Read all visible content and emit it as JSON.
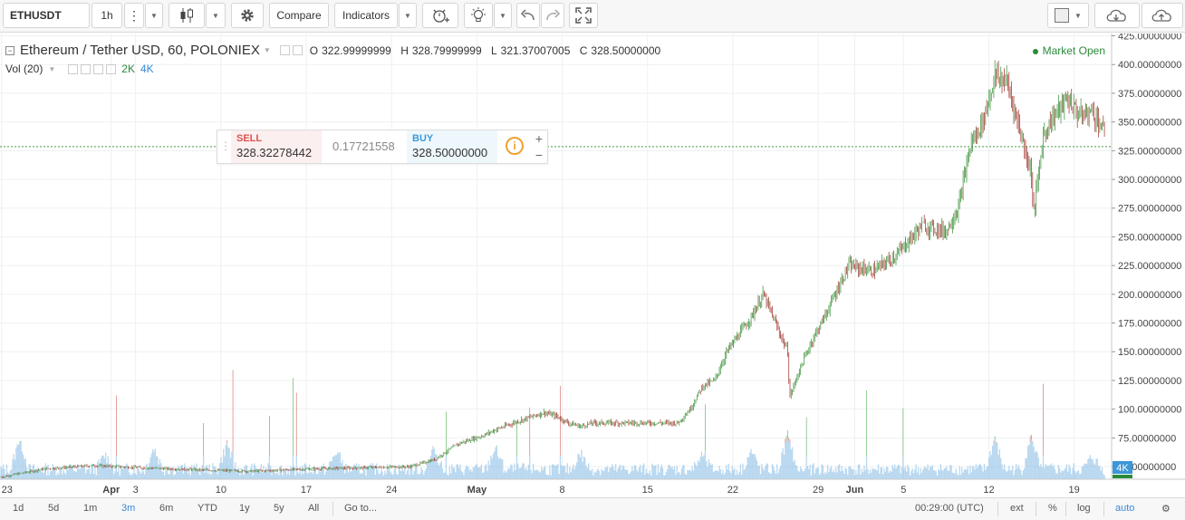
{
  "toolbar": {
    "symbol": "ETHUSDT",
    "interval": "1h",
    "compare_label": "Compare",
    "indicators_label": "Indicators"
  },
  "legend": {
    "title": "Ethereum / Tether USD, 60, POLONIEX",
    "open_label": "O",
    "open": "322.99999999",
    "high_label": "H",
    "high": "328.79999999",
    "low_label": "L",
    "low": "321.37007005",
    "close_label": "C",
    "close": "328.50000000",
    "market_status": "Market Open"
  },
  "volume_legend": {
    "label": "Vol (20)",
    "value_a": "2K",
    "value_b": "4K"
  },
  "trade_widget": {
    "sell_label": "SELL",
    "sell_price": "328.32278442",
    "spread": "0.17721558",
    "buy_label": "BUY",
    "buy_price": "328.50000000",
    "plus": "+",
    "minus": "−"
  },
  "bottom_bar": {
    "ranges": [
      "1d",
      "5d",
      "1m",
      "3m",
      "6m",
      "YTD",
      "1y",
      "5y",
      "All"
    ],
    "active_range": "3m",
    "goto_label": "Go to...",
    "clock": "00:29:00 (UTC)",
    "ext_label": "ext",
    "percent_label": "%",
    "log_label": "log",
    "auto_label": "auto"
  },
  "colors": {
    "up": "#4a9a48",
    "down": "#a8453c",
    "volume": "#7fb8e3",
    "sell": "#d9534f",
    "buy": "#3a9ad9",
    "accent": "#3a8ad6",
    "last_price_badge": "#3c96d8"
  },
  "chart_data": {
    "type": "candlestick",
    "title": "Ethereum / Tether USD, 60, POLONIEX",
    "y_axis": {
      "ticks": [
        "425.00000000",
        "400.00000000",
        "375.00000000",
        "350.00000000",
        "325.00000000",
        "300.00000000",
        "275.00000000",
        "250.00000000",
        "225.00000000",
        "200.00000000",
        "175.00000000",
        "150.00000000",
        "125.00000000",
        "100.00000000",
        "75.00000000",
        "50.00000000"
      ],
      "ylim": [
        39,
        427
      ],
      "side": "right"
    },
    "x_axis": {
      "ticks": [
        "23",
        "Apr",
        "3",
        "10",
        "17",
        "24",
        "May",
        "8",
        "15",
        "22",
        "29",
        "Jun",
        "5",
        "12",
        "19"
      ],
      "bold_ticks": [
        "Apr",
        "May",
        "Jun"
      ],
      "period": "2017-03-23 to 2017-06-21, hourly"
    },
    "last_price": 328.5,
    "volume_badge": "4K",
    "price_path": [
      {
        "x": "2017-03-23",
        "y": 42
      },
      {
        "x": "2017-03-26",
        "y": 48
      },
      {
        "x": "2017-03-30",
        "y": 51
      },
      {
        "x": "2017-04-03",
        "y": 49
      },
      {
        "x": "2017-04-08",
        "y": 47
      },
      {
        "x": "2017-04-12",
        "y": 46
      },
      {
        "x": "2017-04-17",
        "y": 48
      },
      {
        "x": "2017-04-21",
        "y": 49
      },
      {
        "x": "2017-04-25",
        "y": 50
      },
      {
        "x": "2017-04-27",
        "y": 56
      },
      {
        "x": "2017-04-29",
        "y": 70
      },
      {
        "x": "2017-05-01",
        "y": 77
      },
      {
        "x": "2017-05-02",
        "y": 82
      },
      {
        "x": "2017-05-04",
        "y": 90
      },
      {
        "x": "2017-05-06",
        "y": 97
      },
      {
        "x": "2017-05-07",
        "y": 94
      },
      {
        "x": "2017-05-08",
        "y": 88
      },
      {
        "x": "2017-05-09",
        "y": 85
      },
      {
        "x": "2017-05-10",
        "y": 88
      },
      {
        "x": "2017-05-14",
        "y": 88
      },
      {
        "x": "2017-05-17",
        "y": 88
      },
      {
        "x": "2017-05-18",
        "y": 100
      },
      {
        "x": "2017-05-19",
        "y": 120
      },
      {
        "x": "2017-05-20",
        "y": 125
      },
      {
        "x": "2017-05-21",
        "y": 150
      },
      {
        "x": "2017-05-22",
        "y": 165
      },
      {
        "x": "2017-05-23",
        "y": 180
      },
      {
        "x": "2017-05-24",
        "y": 200
      },
      {
        "x": "2017-05-25",
        "y": 175
      },
      {
        "x": "2017-05-26",
        "y": 150
      },
      {
        "x": "2017-05-26",
        "y": 110
      },
      {
        "x": "2017-05-27",
        "y": 135
      },
      {
        "x": "2017-05-28",
        "y": 160
      },
      {
        "x": "2017-05-29",
        "y": 180
      },
      {
        "x": "2017-05-31",
        "y": 225
      },
      {
        "x": "2017-06-02",
        "y": 220
      },
      {
        "x": "2017-06-04",
        "y": 235
      },
      {
        "x": "2017-06-06",
        "y": 260
      },
      {
        "x": "2017-06-08",
        "y": 255
      },
      {
        "x": "2017-06-09",
        "y": 275
      },
      {
        "x": "2017-06-10",
        "y": 330
      },
      {
        "x": "2017-06-11",
        "y": 350
      },
      {
        "x": "2017-06-12",
        "y": 390
      },
      {
        "x": "2017-06-13",
        "y": 385
      },
      {
        "x": "2017-06-14",
        "y": 345
      },
      {
        "x": "2017-06-15",
        "y": 305
      },
      {
        "x": "2017-06-15",
        "y": 268
      },
      {
        "x": "2017-06-16",
        "y": 340
      },
      {
        "x": "2017-06-17",
        "y": 358
      },
      {
        "x": "2017-06-18",
        "y": 370
      },
      {
        "x": "2017-06-19",
        "y": 355
      },
      {
        "x": "2017-06-20",
        "y": 360
      },
      {
        "x": "2017-06-21",
        "y": 340
      },
      {
        "x": "2017-06-21",
        "y": 300
      },
      {
        "x": "2017-06-21",
        "y": 328.5
      }
    ],
    "volume_spikes": [
      {
        "x": "2017-03-24",
        "rel": 0.85
      },
      {
        "x": "2017-03-31",
        "rel": 0.4
      },
      {
        "x": "2017-04-04",
        "rel": 0.6
      },
      {
        "x": "2017-04-10",
        "rel": 0.7
      },
      {
        "x": "2017-04-19",
        "rel": 0.5
      },
      {
        "x": "2017-04-27",
        "rel": 0.55
      },
      {
        "x": "2017-05-02",
        "rel": 0.6
      },
      {
        "x": "2017-05-09",
        "rel": 0.45
      },
      {
        "x": "2017-05-19",
        "rel": 0.4
      },
      {
        "x": "2017-05-23",
        "rel": 0.5
      },
      {
        "x": "2017-05-26",
        "rel": 0.95
      },
      {
        "x": "2017-06-12",
        "rel": 0.85
      },
      {
        "x": "2017-06-15",
        "rel": 0.9
      },
      {
        "x": "2017-06-20",
        "rel": 0.35
      }
    ]
  }
}
